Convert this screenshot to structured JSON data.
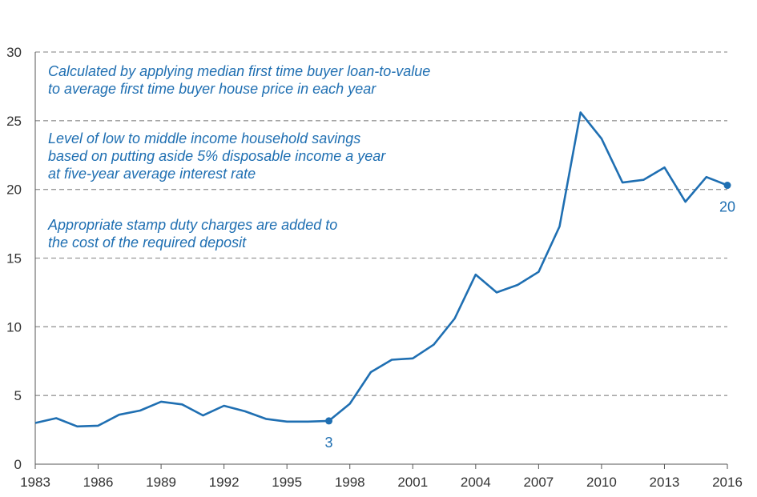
{
  "chart_data": {
    "type": "line",
    "title": "",
    "xlabel": "",
    "ylabel": "",
    "ylim": [
      0,
      30
    ],
    "xlim": [
      1983,
      2016
    ],
    "yticks": [
      0,
      5,
      10,
      15,
      20,
      25,
      30
    ],
    "xticks": [
      1983,
      1986,
      1989,
      1992,
      1995,
      1998,
      2001,
      2004,
      2007,
      2010,
      2013,
      2016
    ],
    "grid": "horizontal-dashed",
    "series": [
      {
        "color": "#1f6fb2",
        "x": [
          1983,
          1984,
          1985,
          1986,
          1987,
          1988,
          1989,
          1990,
          1991,
          1992,
          1993,
          1994,
          1995,
          1996,
          1997,
          1998,
          1999,
          2000,
          2001,
          2002,
          2003,
          2004,
          2005,
          2006,
          2007,
          2008,
          2009,
          2010,
          2011,
          2012,
          2013,
          2014,
          2015,
          2016
        ],
        "y": [
          3.0,
          3.35,
          2.75,
          2.8,
          3.6,
          3.9,
          4.55,
          4.35,
          3.55,
          4.25,
          3.85,
          3.3,
          3.1,
          3.1,
          3.15,
          4.4,
          6.7,
          7.6,
          7.7,
          8.7,
          10.6,
          13.8,
          12.5,
          13.05,
          14.0,
          17.3,
          25.6,
          23.7,
          20.5,
          20.7,
          21.6,
          19.1,
          20.9,
          20.3
        ]
      }
    ],
    "highlighted_points": [
      {
        "x": 1997,
        "y": 3.15,
        "label": "3"
      },
      {
        "x": 2016,
        "y": 20.3,
        "label": "20"
      }
    ],
    "annotations": [
      [
        "Calculated by applying median first time buyer loan-to-value",
        "to average first time buyer house price in each year"
      ],
      [
        "Level of low to middle income household savings",
        "based on putting aside 5% disposable income a year",
        "at five-year average interest rate"
      ],
      [
        "Appropriate stamp duty charges are added to",
        "the cost of the required deposit"
      ]
    ]
  },
  "colors": {
    "line": "#1f6fb2",
    "grid": "#999999",
    "axis": "#555555"
  }
}
